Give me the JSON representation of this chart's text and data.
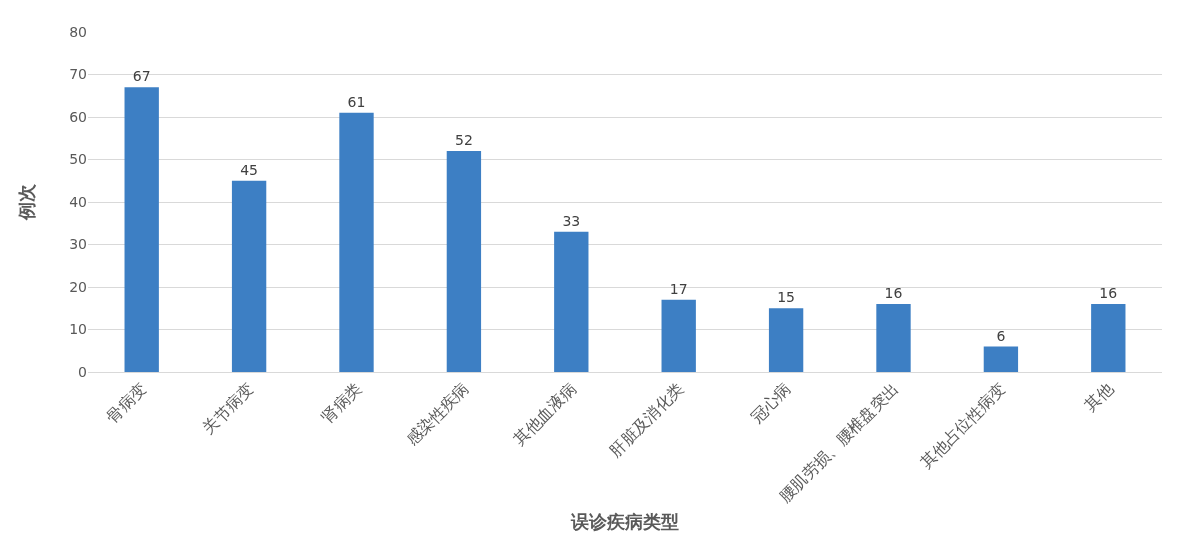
{
  "chart_data": {
    "type": "bar",
    "xlabel": "误诊疾病类型",
    "ylabel": "例次",
    "categories": [
      "骨病变",
      "关节病变",
      "肾病类",
      "感染性疾病",
      "其他血液病",
      "肝脏及消化类",
      "冠心病",
      "腰肌劳损、腰椎盘突出",
      "其他占位性病变",
      "其他"
    ],
    "values": [
      67,
      45,
      61,
      52,
      33,
      17,
      15,
      16,
      6,
      16
    ],
    "color": "#3d7fc4",
    "ylim": [
      0,
      80
    ],
    "yticks": [
      0,
      10,
      20,
      30,
      40,
      50,
      60,
      70,
      80
    ],
    "grid": "y",
    "data_labels": true
  }
}
